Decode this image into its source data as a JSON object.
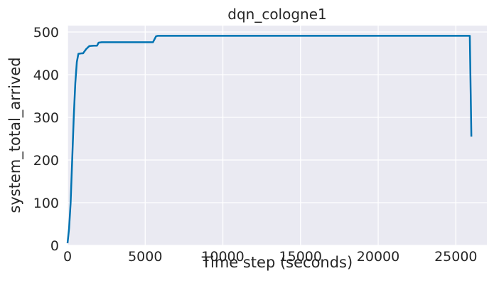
{
  "chart_data": {
    "type": "line",
    "title": "dqn_cologne1",
    "xlabel": "Time step (seconds)",
    "ylabel": "system_total_arrived",
    "xlim": [
      0,
      27000
    ],
    "ylim": [
      0,
      515
    ],
    "x_ticks": [
      0,
      5000,
      10000,
      15000,
      20000,
      25000
    ],
    "y_ticks": [
      0,
      100,
      200,
      300,
      400,
      500
    ],
    "grid": true,
    "legend": "none",
    "background_color": "#eaeaf2",
    "grid_color": "#ffffff",
    "series": [
      {
        "color": "#0173b2",
        "points": [
          [
            0,
            5
          ],
          [
            100,
            40
          ],
          [
            200,
            100
          ],
          [
            300,
            200
          ],
          [
            400,
            300
          ],
          [
            500,
            380
          ],
          [
            600,
            430
          ],
          [
            700,
            449
          ],
          [
            900,
            450
          ],
          [
            1000,
            450
          ],
          [
            1200,
            460
          ],
          [
            1400,
            467
          ],
          [
            1700,
            468
          ],
          [
            1900,
            468
          ],
          [
            2000,
            475
          ],
          [
            2200,
            476
          ],
          [
            5400,
            476
          ],
          [
            5500,
            476
          ],
          [
            5700,
            490
          ],
          [
            5800,
            491
          ],
          [
            25900,
            491
          ],
          [
            26000,
            255
          ]
        ]
      }
    ]
  }
}
